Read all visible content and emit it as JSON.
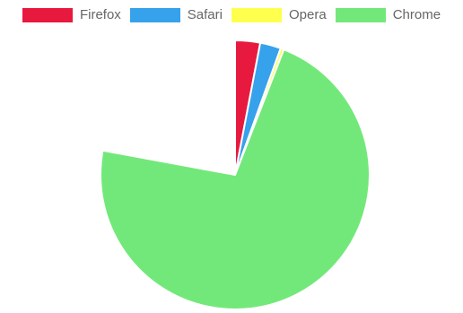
{
  "chart_data": {
    "type": "pie",
    "categories": [
      "Firefox",
      "Safari",
      "Opera",
      "Chrome"
    ],
    "values": [
      3,
      2.5,
      0.4,
      72
    ],
    "colors": [
      "#e8193f",
      "#36a2eb",
      "#ffff4d",
      "#73e87a"
    ],
    "legend_position": "top"
  }
}
